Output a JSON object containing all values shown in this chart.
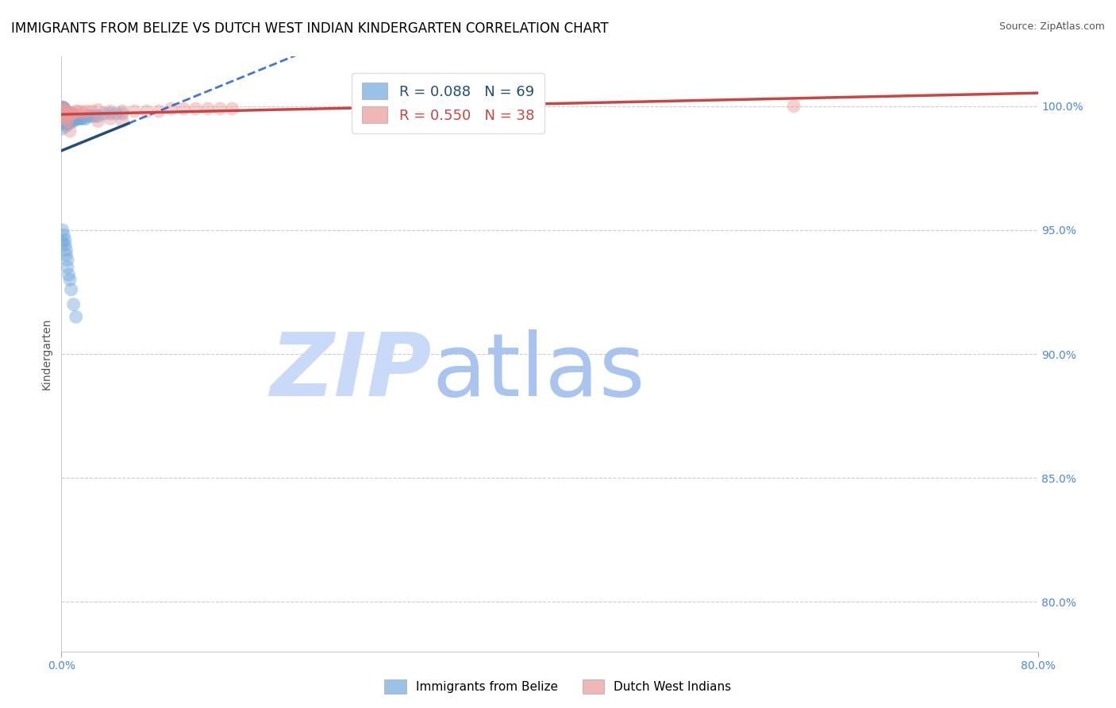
{
  "title": "IMMIGRANTS FROM BELIZE VS DUTCH WEST INDIAN KINDERGARTEN CORRELATION CHART",
  "source": "Source: ZipAtlas.com",
  "ylabel": "Kindergarten",
  "ytick_labels": [
    "100.0%",
    "95.0%",
    "90.0%",
    "85.0%",
    "80.0%"
  ],
  "ytick_values": [
    1.0,
    0.95,
    0.9,
    0.85,
    0.8
  ],
  "xlim": [
    0.0,
    0.8
  ],
  "ylim": [
    0.78,
    1.02
  ],
  "blue_R": 0.088,
  "blue_N": 69,
  "pink_R": 0.55,
  "pink_N": 38,
  "blue_color": "#6fa8dc",
  "pink_color": "#ea9999",
  "blue_line_color": "#1155cc",
  "blue_line_color_solid": "#1f4e79",
  "pink_line_color": "#cc4444",
  "legend_label_blue": "Immigrants from Belize",
  "legend_label_pink": "Dutch West Indians",
  "background_color": "#ffffff",
  "watermark_zip_color": "#c9daf8",
  "watermark_atlas_color": "#aac4f0",
  "title_fontsize": 12,
  "axis_label_fontsize": 10,
  "tick_fontsize": 10,
  "tick_color": "#4a86e8",
  "blue_scatter_x": [
    0.0005,
    0.0005,
    0.0005,
    0.001,
    0.001,
    0.001,
    0.001,
    0.001,
    0.001,
    0.001,
    0.001,
    0.001,
    0.0015,
    0.002,
    0.002,
    0.002,
    0.002,
    0.003,
    0.003,
    0.003,
    0.003,
    0.004,
    0.004,
    0.004,
    0.004,
    0.005,
    0.005,
    0.005,
    0.006,
    0.006,
    0.006,
    0.007,
    0.007,
    0.008,
    0.008,
    0.009,
    0.009,
    0.01,
    0.01,
    0.011,
    0.012,
    0.013,
    0.014,
    0.015,
    0.016,
    0.018,
    0.02,
    0.022,
    0.025,
    0.028,
    0.03,
    0.035,
    0.04,
    0.045,
    0.05,
    0.001,
    0.001,
    0.002,
    0.003,
    0.003,
    0.004,
    0.004,
    0.005,
    0.005,
    0.006,
    0.007,
    0.008,
    0.01,
    0.012
  ],
  "blue_scatter_y": [
    0.9995,
    0.999,
    0.998,
    0.9995,
    0.999,
    0.998,
    0.997,
    0.996,
    0.995,
    0.994,
    0.993,
    0.991,
    0.997,
    0.9995,
    0.999,
    0.997,
    0.995,
    0.9985,
    0.997,
    0.995,
    0.993,
    0.998,
    0.996,
    0.994,
    0.992,
    0.997,
    0.995,
    0.993,
    0.997,
    0.995,
    0.993,
    0.996,
    0.994,
    0.996,
    0.994,
    0.996,
    0.994,
    0.996,
    0.994,
    0.996,
    0.995,
    0.995,
    0.995,
    0.995,
    0.995,
    0.995,
    0.995,
    0.996,
    0.996,
    0.996,
    0.996,
    0.997,
    0.997,
    0.997,
    0.997,
    0.95,
    0.945,
    0.948,
    0.946,
    0.944,
    0.942,
    0.94,
    0.938,
    0.935,
    0.932,
    0.93,
    0.926,
    0.92,
    0.915
  ],
  "pink_scatter_x": [
    0.0005,
    0.001,
    0.001,
    0.002,
    0.002,
    0.003,
    0.003,
    0.004,
    0.004,
    0.005,
    0.005,
    0.006,
    0.007,
    0.008,
    0.009,
    0.01,
    0.012,
    0.015,
    0.018,
    0.02,
    0.025,
    0.03,
    0.03,
    0.04,
    0.04,
    0.05,
    0.05,
    0.06,
    0.07,
    0.08,
    0.09,
    0.1,
    0.11,
    0.12,
    0.13,
    0.14,
    0.6,
    0.007
  ],
  "pink_scatter_y": [
    0.9995,
    0.9985,
    0.997,
    0.9985,
    0.996,
    0.998,
    0.995,
    0.9975,
    0.995,
    0.997,
    0.994,
    0.9965,
    0.997,
    0.997,
    0.997,
    0.997,
    0.998,
    0.998,
    0.997,
    0.998,
    0.998,
    0.9985,
    0.994,
    0.998,
    0.995,
    0.998,
    0.994,
    0.998,
    0.998,
    0.998,
    0.999,
    0.999,
    0.999,
    0.999,
    0.999,
    0.999,
    1.0,
    0.99
  ]
}
